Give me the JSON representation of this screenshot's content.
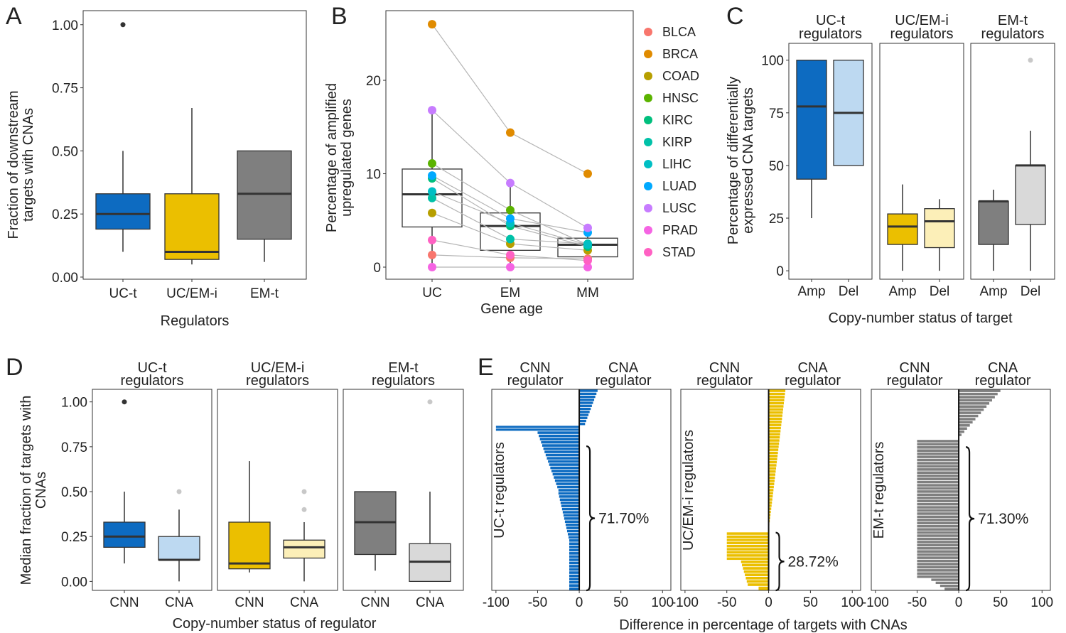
{
  "letters": {
    "A": "A",
    "B": "B",
    "C": "C",
    "D": "D",
    "E": "E"
  },
  "colors": {
    "uct": "#0d6bc1",
    "uct_light": "#bdd9f1",
    "ucemi": "#ebbf00",
    "ucemi_light": "#fcefb8",
    "emt": "#7f7f7f",
    "emt_light": "#d9d9d9",
    "legend": {
      "BLCA": "#f8766d",
      "BRCA": "#e08b00",
      "COAD": "#b79f00",
      "HNSC": "#5bb300",
      "KIRC": "#00bf7d",
      "KIRP": "#00c1a8",
      "LIHC": "#00bfc4",
      "LUAD": "#00a9ff",
      "LUSC": "#c77cff",
      "PRAD": "#f564e3",
      "STAD": "#ff61c3"
    }
  },
  "panelA": {
    "ylabel_lines": [
      "Fraction of downstream",
      "targets with CNAs"
    ],
    "xlabel": "Regulators",
    "yticks": [
      "0.00",
      "0.25",
      "0.50",
      "0.75",
      "1.00"
    ]
  },
  "panelB": {
    "ylabel_lines": [
      "Percentage of amplified",
      "upregulated genes"
    ],
    "xlabel": "Gene age",
    "yticks": [
      "0",
      "10",
      "20"
    ],
    "legend": [
      "BLCA",
      "BRCA",
      "COAD",
      "HNSC",
      "KIRC",
      "KIRP",
      "LIHC",
      "LUAD",
      "LUSC",
      "PRAD",
      "STAD"
    ]
  },
  "panelC": {
    "ylabel_lines": [
      "Percentage of differentially",
      "expressed CNA targets"
    ],
    "xlabel": "Copy-number status of target",
    "yticks": [
      "0",
      "25",
      "50",
      "75",
      "100"
    ],
    "strips": [
      [
        "UC-t",
        "regulators"
      ],
      [
        "UC/EM-i",
        "regulators"
      ],
      [
        "EM-t",
        "regulators"
      ]
    ],
    "xcats": [
      "Amp",
      "Del"
    ]
  },
  "panelD": {
    "ylabel_lines": [
      "Median fraction of targets with",
      "CNAs"
    ],
    "xlabel": "Copy-number status of regulator",
    "yticks": [
      "0.00",
      "0.25",
      "0.50",
      "0.75",
      "1.00"
    ],
    "strips": [
      [
        "UC-t",
        "regulators"
      ],
      [
        "UC/EM-i",
        "regulators"
      ],
      [
        "EM-t",
        "regulators"
      ]
    ],
    "xcats": [
      "CNN",
      "CNA"
    ]
  },
  "panelE": {
    "xlabel": "Difference in percentage of targets with CNAs",
    "xticks": [
      "-100",
      "-50",
      "0",
      "50",
      "100"
    ],
    "head": [
      "CNN",
      "regulator",
      "CNA",
      "regulator"
    ],
    "facet_labels": [
      "UC-t regulators",
      "UC/EM-i regulators",
      "EM-t regulators"
    ],
    "percents": [
      "71.70%",
      "28.72%",
      "71.30%"
    ]
  },
  "chart_data": [
    {
      "panel": "A",
      "type": "box",
      "title": "",
      "xlabel": "Regulators",
      "ylabel": "Fraction of downstream targets with CNAs",
      "categories": [
        "UC-t",
        "UC/EM-i",
        "EM-t"
      ],
      "ylim": [
        0,
        1.05
      ],
      "boxes": [
        {
          "name": "UC-t",
          "q1": 0.19,
          "median": 0.25,
          "q3": 0.33,
          "low": 0.1,
          "high": 0.5,
          "outliers": [
            1.0
          ],
          "color": "#0d6bc1"
        },
        {
          "name": "UC/EM-i",
          "q1": 0.07,
          "median": 0.1,
          "q3": 0.33,
          "low": 0.05,
          "high": 0.67,
          "outliers": [],
          "color": "#ebbf00"
        },
        {
          "name": "EM-t",
          "q1": 0.15,
          "median": 0.33,
          "q3": 0.5,
          "low": 0.06,
          "high": 0.5,
          "outliers": [],
          "color": "#7f7f7f"
        }
      ]
    },
    {
      "panel": "B",
      "type": "box+paired-points",
      "xlabel": "Gene age",
      "ylabel": "Percentage of amplified upregulated genes",
      "categories": [
        "UC",
        "EM",
        "MM"
      ],
      "ylim": [
        -0.7,
        27
      ],
      "boxes": [
        {
          "name": "UC",
          "q1": 4.3,
          "median": 7.8,
          "q3": 10.5,
          "low": 0,
          "high": 16.5
        },
        {
          "name": "EM",
          "q1": 1.8,
          "median": 4.4,
          "q3": 5.8,
          "low": 0,
          "high": 9
        },
        {
          "name": "MM",
          "q1": 1.1,
          "median": 2.4,
          "q3": 3.1,
          "low": 0,
          "high": 4.3
        }
      ],
      "series": [
        {
          "name": "BLCA",
          "values": [
            1.3,
            1.0,
            0.9
          ]
        },
        {
          "name": "BRCA",
          "values": [
            26,
            14.4,
            10
          ]
        },
        {
          "name": "COAD",
          "values": [
            5.8,
            2.5,
            1.8
          ]
        },
        {
          "name": "HNSC",
          "values": [
            11.1,
            6.1,
            2.4
          ]
        },
        {
          "name": "KIRC",
          "values": [
            9.5,
            4.4,
            2.2
          ]
        },
        {
          "name": "KIRP",
          "values": [
            7.4,
            3.0,
            2.5
          ]
        },
        {
          "name": "LIHC",
          "values": [
            8.1,
            4.7,
            2.4
          ]
        },
        {
          "name": "LUAD",
          "values": [
            9.8,
            5.2,
            3.7
          ]
        },
        {
          "name": "LUSC",
          "values": [
            16.8,
            9.0,
            4.2
          ]
        },
        {
          "name": "PRAD",
          "values": [
            0.0,
            0.0,
            0.0
          ]
        },
        {
          "name": "STAD",
          "values": [
            2.9,
            1.3,
            0.7
          ]
        }
      ]
    },
    {
      "panel": "C",
      "type": "box",
      "xlabel": "Copy-number status of target",
      "ylabel": "Percentage of differentially expressed CNA targets",
      "ylim": [
        -4,
        108
      ],
      "facets": [
        {
          "name": "UC-t regulators",
          "boxes": [
            {
              "name": "Amp",
              "q1": 43.5,
              "median": 78,
              "q3": 100,
              "low": 25,
              "high": 100,
              "outliers": [],
              "color": "#0d6bc1"
            },
            {
              "name": "Del",
              "q1": 50,
              "median": 75,
              "q3": 100,
              "low": 50,
              "high": 100,
              "outliers": [],
              "color": "#bdd9f1"
            }
          ]
        },
        {
          "name": "UC/EM-i regulators",
          "boxes": [
            {
              "name": "Amp",
              "q1": 12.5,
              "median": 21,
              "q3": 27,
              "low": 0,
              "high": 41,
              "outliers": [],
              "color": "#ebbf00"
            },
            {
              "name": "Del",
              "q1": 11,
              "median": 23.5,
              "q3": 29.5,
              "low": 0,
              "high": 34,
              "outliers": [],
              "color": "#fcefb8"
            }
          ]
        },
        {
          "name": "EM-t regulators",
          "boxes": [
            {
              "name": "Amp",
              "q1": 12.5,
              "median": 33,
              "q3": 33,
              "low": 0,
              "high": 38.5,
              "outliers": [],
              "color": "#7f7f7f"
            },
            {
              "name": "Del",
              "q1": 22,
              "median": 50,
              "q3": 50,
              "low": 0,
              "high": 66.5,
              "outliers": [
                100
              ],
              "color": "#d9d9d9"
            }
          ]
        }
      ]
    },
    {
      "panel": "D",
      "type": "box",
      "xlabel": "Copy-number status of regulator",
      "ylabel": "Median fraction of targets with CNAs",
      "ylim": [
        -0.05,
        1.07
      ],
      "facets": [
        {
          "name": "UC-t regulators",
          "boxes": [
            {
              "name": "CNN",
              "q1": 0.19,
              "median": 0.25,
              "q3": 0.33,
              "low": 0.1,
              "high": 0.5,
              "outliers": [
                1.0
              ],
              "color": "#0d6bc1"
            },
            {
              "name": "CNA",
              "q1": 0.12,
              "median": 0.12,
              "q3": 0.25,
              "low": 0.0,
              "high": 0.4,
              "outliers": [
                0.5
              ],
              "color": "#bdd9f1"
            }
          ]
        },
        {
          "name": "UC/EM-i regulators",
          "boxes": [
            {
              "name": "CNN",
              "q1": 0.07,
              "median": 0.1,
              "q3": 0.33,
              "low": 0.05,
              "high": 0.67,
              "outliers": [],
              "color": "#ebbf00"
            },
            {
              "name": "CNA",
              "q1": 0.13,
              "median": 0.19,
              "q3": 0.23,
              "low": 0.0,
              "high": 0.33,
              "outliers": [
                0.4,
                0.5
              ],
              "color": "#fcefb8"
            }
          ]
        },
        {
          "name": "EM-t regulators",
          "boxes": [
            {
              "name": "CNN",
              "q1": 0.15,
              "median": 0.33,
              "q3": 0.5,
              "low": 0.06,
              "high": 0.5,
              "outliers": [],
              "color": "#7f7f7f"
            },
            {
              "name": "CNA",
              "q1": 0.0,
              "median": 0.11,
              "q3": 0.21,
              "low": 0.0,
              "high": 0.5,
              "outliers": [
                1.0
              ],
              "color": "#d9d9d9"
            }
          ]
        }
      ]
    },
    {
      "panel": "E",
      "type": "bar",
      "orientation": "horizontal",
      "xlabel": "Difference in percentage of targets with CNAs",
      "xlim": [
        -105,
        110
      ],
      "facets": [
        {
          "name": "UC-t regulators",
          "percent_label": "71.70%",
          "bracket_fraction": 0.717,
          "color": "#0d6bc1",
          "segments": [
            {
              "share": 0.18,
              "from": 22,
              "to": 7
            },
            {
              "share": 0.028,
              "value": -100
            },
            {
              "share": 0.302,
              "from": -50,
              "to": -25
            },
            {
              "share": 0.25,
              "from": -25,
              "to": -12
            },
            {
              "share": 0.24,
              "from": -12,
              "to": -12
            }
          ]
        },
        {
          "name": "UC/EM-i regulators",
          "percent_label": "28.72%",
          "bracket_fraction": 0.2872,
          "color": "#ebbf00",
          "segments": [
            {
              "share": 0.71,
              "from": 20,
              "to": 0
            },
            {
              "share": 0.14,
              "value": -50
            },
            {
              "share": 0.13,
              "from": -33,
              "to": -25
            },
            {
              "share": 0.02,
              "from": -12,
              "to": -8
            }
          ]
        },
        {
          "name": "EM-t regulators",
          "percent_label": "71.30%",
          "bracket_fraction": 0.713,
          "color": "#7f7f7f",
          "segments": [
            {
              "share": 0.25,
              "from": 50,
              "to": 0
            },
            {
              "share": 0.69,
              "value": -50
            },
            {
              "share": 0.06,
              "from": -33,
              "to": -17
            }
          ]
        }
      ]
    }
  ]
}
